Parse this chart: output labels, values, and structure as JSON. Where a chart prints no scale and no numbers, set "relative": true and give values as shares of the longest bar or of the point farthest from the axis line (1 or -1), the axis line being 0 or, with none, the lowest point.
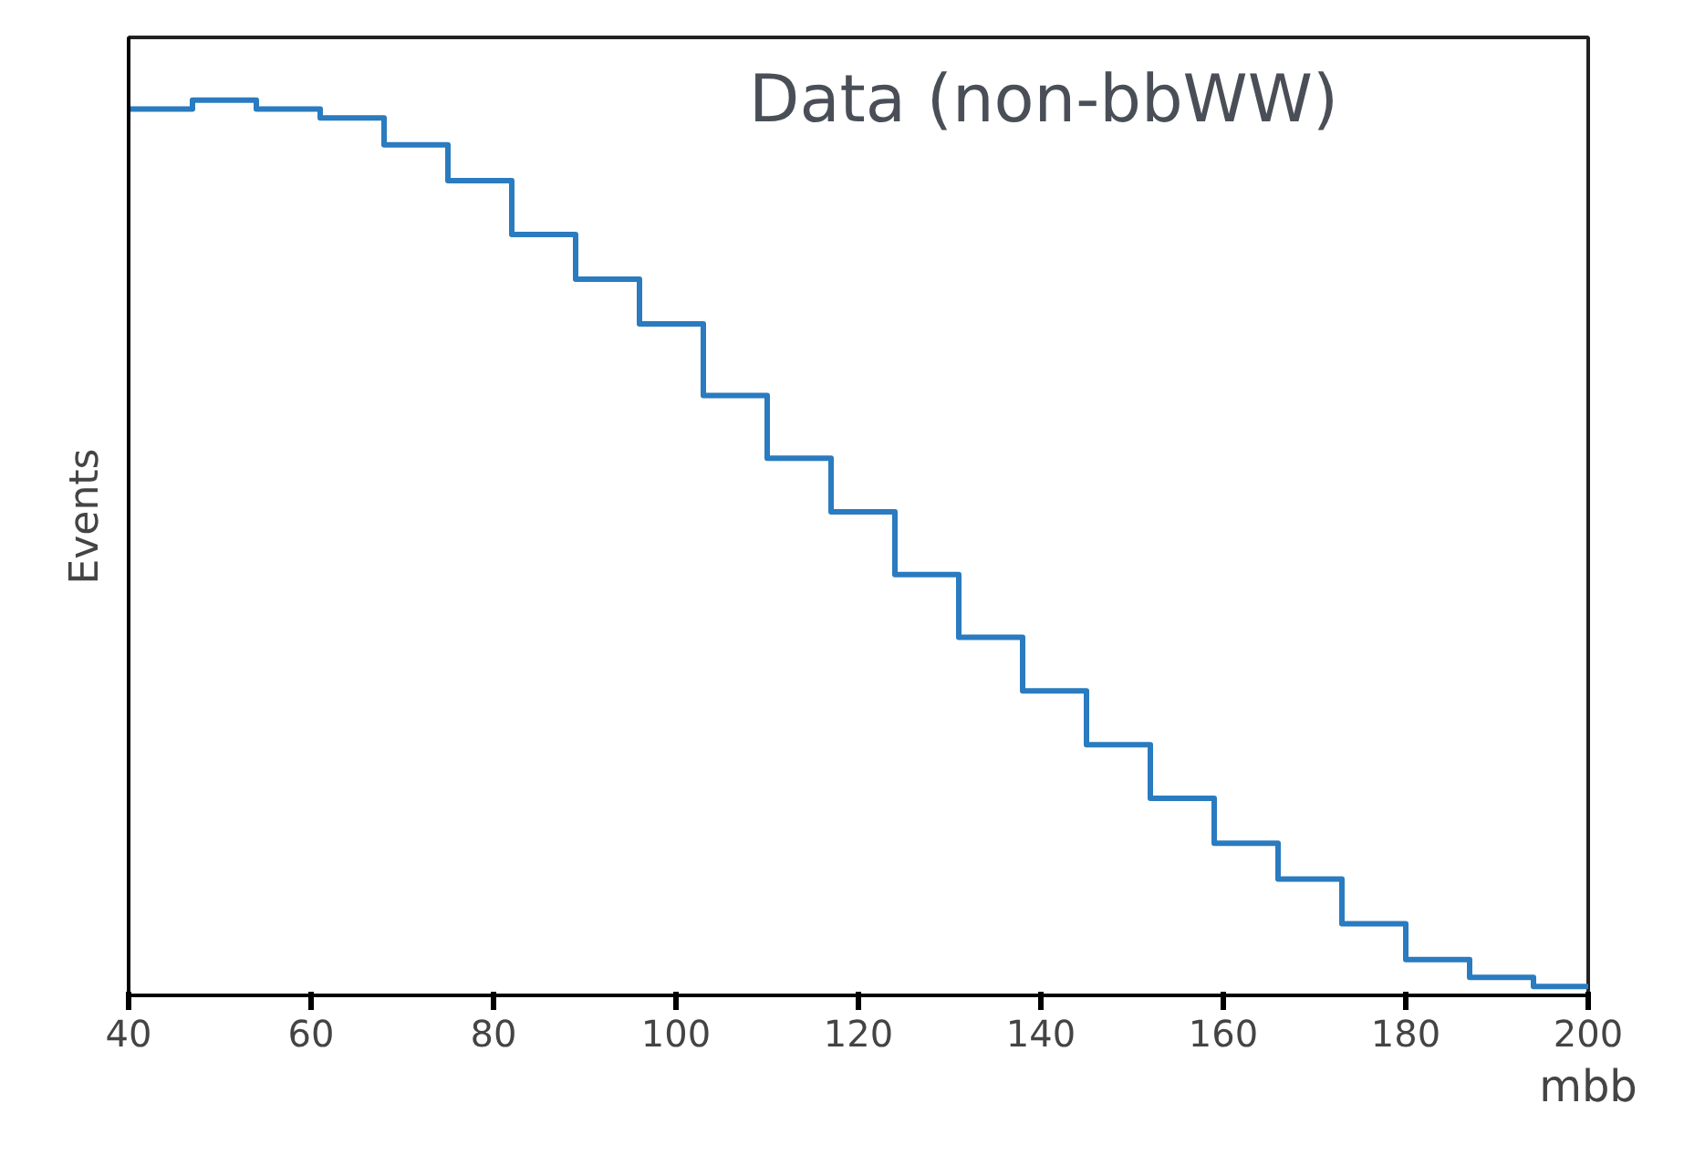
{
  "chart_data": {
    "type": "step",
    "relative": true,
    "xlabel": "mbb",
    "ylabel": "Events",
    "annotations": [
      "Data (non-bbWW)"
    ],
    "x": [
      40,
      47,
      54,
      61,
      68,
      75,
      82,
      89,
      96,
      103,
      110,
      117,
      124,
      131,
      138,
      145,
      152,
      159,
      166,
      173,
      180,
      187,
      194,
      200
    ],
    "values": [
      0.99,
      1.0,
      0.99,
      0.98,
      0.95,
      0.91,
      0.85,
      0.8,
      0.75,
      0.67,
      0.6,
      0.54,
      0.47,
      0.4,
      0.34,
      0.28,
      0.22,
      0.17,
      0.13,
      0.08,
      0.04,
      0.02,
      0.01,
      0.01
    ],
    "color": "#2a7bbf",
    "xlim": [
      40,
      200
    ],
    "xticks": [
      40,
      60,
      80,
      100,
      120,
      140,
      160,
      180,
      200
    ],
    "grid": false
  }
}
